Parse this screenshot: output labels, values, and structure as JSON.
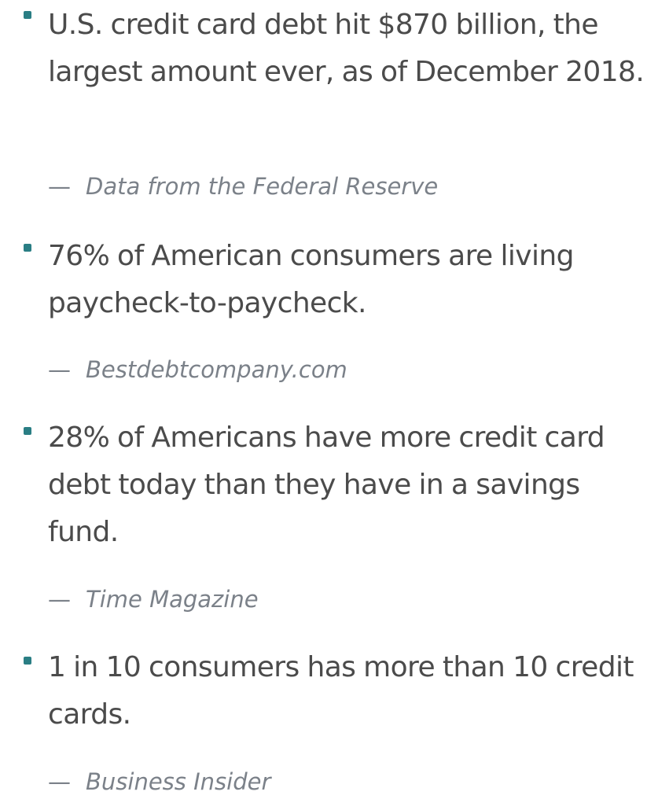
{
  "stats": [
    {
      "text": "U.S. credit card debt hit $870 billion, the largest amount ever, as of December 2018.",
      "dash": "—",
      "source": "Data from the Federal Reserve"
    },
    {
      "text": "76% of American consumers are living paycheck-to-paycheck.",
      "dash": "—",
      "source": "Bestdebtcompany.com"
    },
    {
      "text": "28% of Americans have more credit card debt today than they have in a savings fund.",
      "dash": "—",
      "source": "Time Magazine"
    },
    {
      "text": "1 in 10 consumers has more than 10 credit cards.",
      "dash": "—",
      "source": "Business Insider"
    }
  ],
  "colors": {
    "bullet": "#2a7e84",
    "text": "#4b4b4b",
    "source": "#7b8189"
  }
}
